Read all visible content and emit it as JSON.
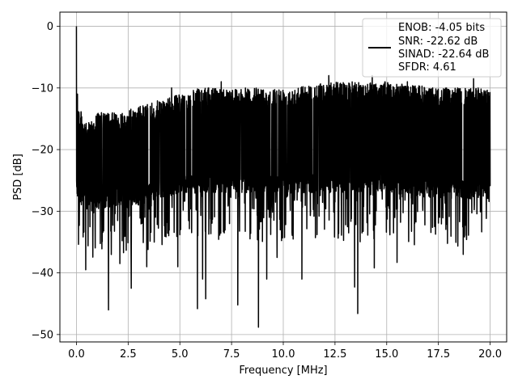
{
  "chart_data": {
    "type": "line",
    "xlabel": "Frequency [MHz]",
    "ylabel": "PSD [dB]",
    "xlim": [
      -0.8,
      20.8
    ],
    "ylim": [
      -51.2,
      2.3
    ],
    "xticks": [
      0.0,
      2.5,
      5.0,
      7.5,
      10.0,
      12.5,
      15.0,
      17.5,
      20.0
    ],
    "xtick_labels": [
      "0.0",
      "2.5",
      "5.0",
      "7.5",
      "10.0",
      "12.5",
      "15.0",
      "17.5",
      "20.0"
    ],
    "yticks": [
      0,
      -10,
      -20,
      -30,
      -40,
      -50
    ],
    "ytick_labels": [
      "0",
      "−10",
      "−20",
      "−30",
      "−40",
      "−50"
    ],
    "grid": true,
    "legend_position": "top-right",
    "legend_entries": [
      "ENOB: -4.05 bits",
      "SNR: -22.62 dB",
      "SINAD: -22.64 dB",
      "SFDR: 4.61"
    ],
    "series": [
      {
        "color": "#000000",
        "x_range": [
          0.0,
          20.0
        ],
        "band_knots": {
          "x": [
            0.0,
            0.5,
            1.0,
            2.0,
            3.0,
            4.0,
            5.0,
            6.0,
            8.0,
            10.0,
            12.5,
            15.0,
            17.5,
            20.0
          ],
          "upper": [
            -12.0,
            -16.0,
            -14.0,
            -14.0,
            -13.0,
            -12.0,
            -11.0,
            -10.0,
            -10.0,
            -10.0,
            -9.0,
            -9.0,
            -10.0,
            -10.0
          ],
          "lower": [
            -28.0,
            -30.0,
            -30.0,
            -29.0,
            -29.0,
            -28.0,
            -27.0,
            -27.0,
            -27.0,
            -27.0,
            -27.0,
            -27.0,
            -28.0,
            -28.0
          ]
        },
        "peaks": [
          {
            "x": 0.0,
            "y": 0.0
          },
          {
            "x": 0.05,
            "y": -11.0
          },
          {
            "x": 4.6,
            "y": -10.0
          },
          {
            "x": 7.0,
            "y": -9.0
          },
          {
            "x": 12.2,
            "y": -8.0
          },
          {
            "x": 14.3,
            "y": -8.0
          },
          {
            "x": 16.0,
            "y": -9.0
          },
          {
            "x": 19.2,
            "y": -8.5
          }
        ],
        "dips": [
          {
            "x": 0.45,
            "y": -39.5
          },
          {
            "x": 1.55,
            "y": -46.0
          },
          {
            "x": 2.1,
            "y": -38.5
          },
          {
            "x": 2.65,
            "y": -42.5
          },
          {
            "x": 3.4,
            "y": -39.0
          },
          {
            "x": 4.9,
            "y": -39.0
          },
          {
            "x": 5.85,
            "y": -45.8
          },
          {
            "x": 6.1,
            "y": -41.0
          },
          {
            "x": 6.25,
            "y": -44.2
          },
          {
            "x": 7.8,
            "y": -45.2
          },
          {
            "x": 8.8,
            "y": -48.8
          },
          {
            "x": 9.2,
            "y": -41.0
          },
          {
            "x": 9.7,
            "y": -37.5
          },
          {
            "x": 10.9,
            "y": -41.0
          },
          {
            "x": 13.45,
            "y": -42.3
          },
          {
            "x": 13.6,
            "y": -46.6
          },
          {
            "x": 14.4,
            "y": -39.2
          },
          {
            "x": 15.5,
            "y": -38.3
          },
          {
            "x": 18.7,
            "y": -37.0
          }
        ]
      }
    ]
  }
}
